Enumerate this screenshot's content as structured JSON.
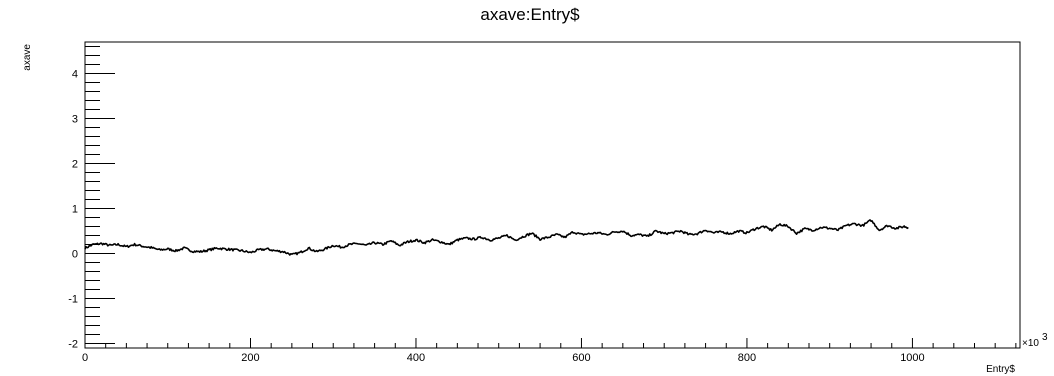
{
  "chart_data": {
    "type": "line",
    "title": "axave:Entry$",
    "xlabel": "Entry$",
    "ylabel": "axave",
    "x_multiplier_label": "×10",
    "x_multiplier_exponent": "3",
    "xlim": [
      0,
      1130
    ],
    "ylim": [
      -2.1,
      4.7
    ],
    "x_ticks": [
      0,
      200,
      400,
      600,
      800,
      1000
    ],
    "x_tick_labels": [
      "0",
      "200",
      "400",
      "600",
      "800",
      "1000"
    ],
    "y_ticks": [
      -2,
      -1,
      0,
      1,
      2,
      3,
      4
    ],
    "y_tick_labels": [
      "-2",
      "-1",
      "0",
      "1",
      "2",
      "3",
      "4"
    ],
    "grid": false,
    "legend": "none",
    "series": [
      {
        "color": "#000000",
        "x": [
          0,
          10,
          20,
          30,
          40,
          50,
          60,
          70,
          80,
          90,
          100,
          110,
          120,
          130,
          140,
          150,
          160,
          170,
          180,
          190,
          200,
          210,
          220,
          230,
          240,
          250,
          260,
          270,
          280,
          290,
          300,
          310,
          320,
          330,
          340,
          350,
          360,
          370,
          380,
          390,
          400,
          410,
          420,
          430,
          440,
          450,
          460,
          470,
          480,
          490,
          500,
          510,
          520,
          530,
          540,
          550,
          560,
          570,
          580,
          590,
          600,
          610,
          620,
          630,
          640,
          650,
          660,
          670,
          680,
          690,
          700,
          710,
          720,
          730,
          740,
          750,
          760,
          770,
          780,
          790,
          800,
          810,
          820,
          830,
          840,
          850,
          860,
          870,
          880,
          890,
          900,
          910,
          920,
          930,
          940,
          950,
          960,
          970,
          980,
          990,
          995
        ],
        "y": [
          0.12,
          0.2,
          0.22,
          0.18,
          0.2,
          0.15,
          0.2,
          0.16,
          0.13,
          0.08,
          0.1,
          0.06,
          0.12,
          0.05,
          0.04,
          0.08,
          0.12,
          0.1,
          0.08,
          0.06,
          0.02,
          0.08,
          0.1,
          0.06,
          0.04,
          -0.03,
          0.02,
          0.12,
          0.04,
          0.1,
          0.18,
          0.14,
          0.2,
          0.22,
          0.18,
          0.24,
          0.2,
          0.28,
          0.18,
          0.26,
          0.3,
          0.24,
          0.3,
          0.26,
          0.2,
          0.3,
          0.34,
          0.32,
          0.36,
          0.3,
          0.34,
          0.4,
          0.3,
          0.38,
          0.45,
          0.32,
          0.36,
          0.42,
          0.36,
          0.48,
          0.42,
          0.44,
          0.46,
          0.42,
          0.48,
          0.5,
          0.4,
          0.42,
          0.38,
          0.5,
          0.44,
          0.46,
          0.5,
          0.42,
          0.44,
          0.52,
          0.46,
          0.48,
          0.44,
          0.5,
          0.46,
          0.55,
          0.6,
          0.52,
          0.65,
          0.6,
          0.45,
          0.55,
          0.52,
          0.58,
          0.56,
          0.52,
          0.62,
          0.66,
          0.62,
          0.74,
          0.52,
          0.62,
          0.56,
          0.6,
          0.58
        ]
      }
    ]
  }
}
